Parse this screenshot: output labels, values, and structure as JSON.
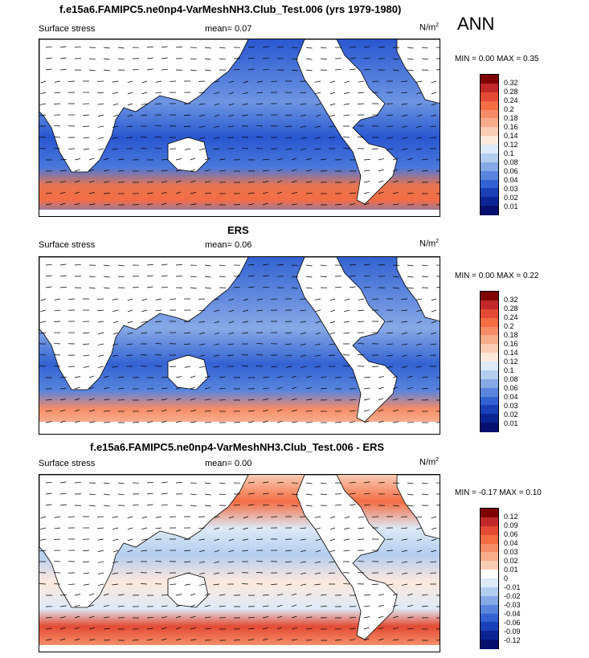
{
  "header": {
    "title": "f.e15a6.FAMIPC5.ne0np4-VarMeshNH3.Club_Test.006 (yrs 1979-1980)",
    "season": "ANN"
  },
  "panels": [
    {
      "subtitle": "",
      "left_label": "Surface stress",
      "mean_text": "mean=  0.07",
      "units": "N/m",
      "units_sup": "2",
      "min_max": "MIN =  0.00 MAX =  0.35",
      "colorbar": {
        "labels": [
          "0.32",
          "0.28",
          "0.24",
          "0.2",
          "0.18",
          "0.16",
          "0.14",
          "0.12",
          "0.1",
          "0.08",
          "0.06",
          "0.04",
          "0.03",
          "0.02",
          "0.01"
        ],
        "colors": [
          "#7f0000",
          "#c0282a",
          "#e34a33",
          "#f46d43",
          "#f58c67",
          "#f7ac8b",
          "#f9ccb3",
          "#fde9dc",
          "#ddeaf7",
          "#b3cdef",
          "#86a9e6",
          "#5a85dd",
          "#3462d2",
          "#1a40b8",
          "#0b2494",
          "#060f6e"
        ]
      }
    },
    {
      "subtitle": "ERS",
      "left_label": "Surface stress",
      "mean_text": "mean=  0.06",
      "units": "N/m",
      "units_sup": "2",
      "min_max": "MIN =  0.00 MAX =  0.22",
      "colorbar": {
        "labels": [
          "0.32",
          "0.28",
          "0.24",
          "0.2",
          "0.18",
          "0.16",
          "0.14",
          "0.12",
          "0.1",
          "0.08",
          "0.06",
          "0.04",
          "0.03",
          "0.02",
          "0.01"
        ],
        "colors": [
          "#7f0000",
          "#c0282a",
          "#e34a33",
          "#f46d43",
          "#f58c67",
          "#f7ac8b",
          "#f9ccb3",
          "#fde9dc",
          "#ddeaf7",
          "#b3cdef",
          "#86a9e6",
          "#5a85dd",
          "#3462d2",
          "#1a40b8",
          "#0b2494",
          "#060f6e"
        ]
      }
    },
    {
      "subtitle": "f.e15a6.FAMIPC5.ne0np4-VarMeshNH3.Club_Test.006 - ERS",
      "left_label": "Surface stress",
      "mean_text": "mean=  0.00",
      "units": "N/m",
      "units_sup": "2",
      "min_max": "MIN = -0.17 MAX =  0.10",
      "colorbar": {
        "labels": [
          "0.12",
          "0.09",
          "0.06",
          "0.04",
          "0.03",
          "0.02",
          "0.01",
          "0",
          "-0.01",
          "-0.02",
          "-0.03",
          "-0.04",
          "-0.06",
          "-0.09",
          "-0.12"
        ],
        "colors": [
          "#7f0000",
          "#c0282a",
          "#e34a33",
          "#f46d43",
          "#f58c67",
          "#f7ac8b",
          "#f9ccb3",
          "#ffffff",
          "#ddeaf7",
          "#b3cdef",
          "#86a9e6",
          "#5a85dd",
          "#3462d2",
          "#1a40b8",
          "#0b2494",
          "#060f6e"
        ]
      }
    }
  ]
}
